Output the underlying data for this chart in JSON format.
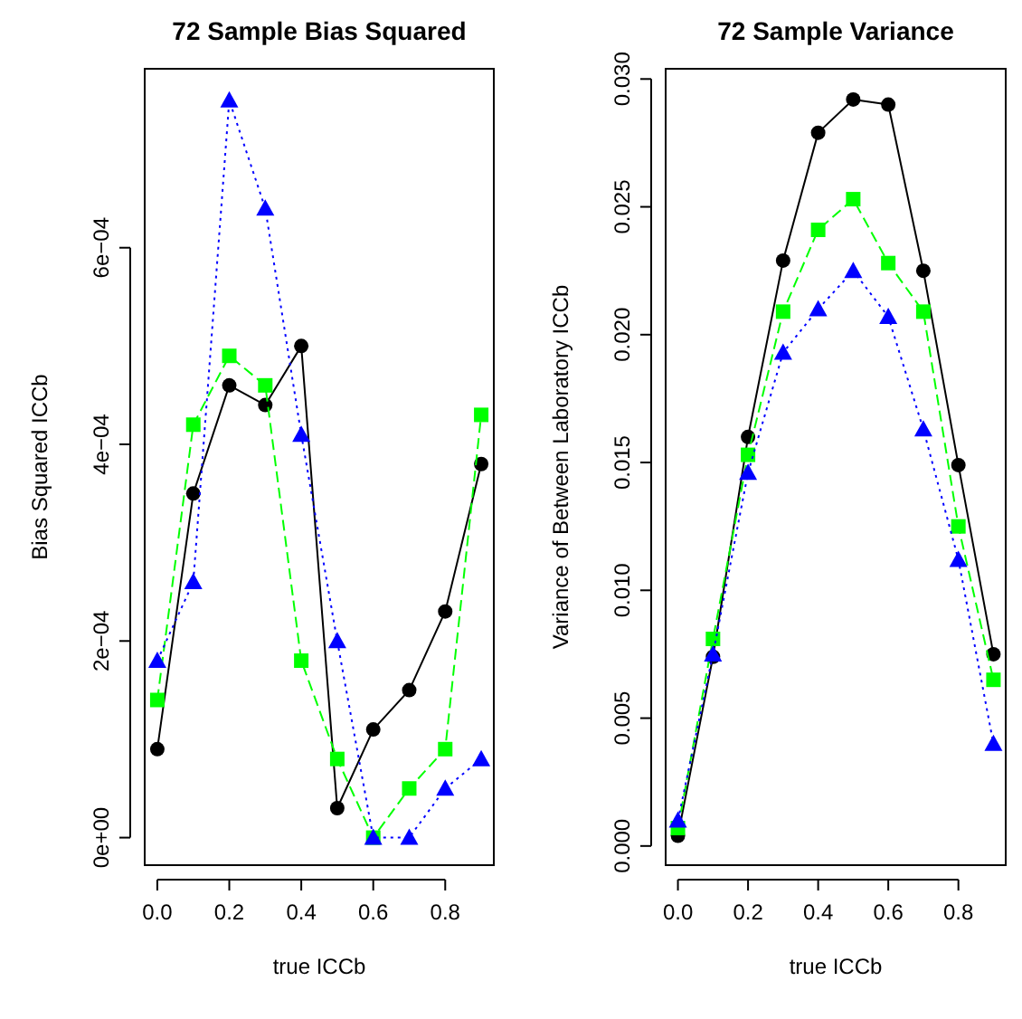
{
  "chart_data": [
    {
      "type": "line",
      "title": "72 Sample Bias Squared",
      "xlabel": "true ICCb",
      "ylabel": "Bias Squared ICCb",
      "x": [
        0.0,
        0.1,
        0.2,
        0.3,
        0.4,
        0.5,
        0.6,
        0.7,
        0.8,
        0.9
      ],
      "xlim": [
        -0.035,
        0.935
      ],
      "xticks": [
        {
          "value": 0,
          "label": "0.0"
        },
        0.2,
        0.4,
        0.6,
        0.8
      ],
      "ylim": [
        -2.8e-05,
        0.000782
      ],
      "yticks": [
        {
          "value": 0,
          "label": "0e+00"
        },
        {
          "value": 0.0002,
          "label": "2e−04"
        },
        {
          "value": 0.0004,
          "label": "4e−04"
        },
        {
          "value": 0.0006,
          "label": "6e−04"
        }
      ],
      "grid": false,
      "series": [
        {
          "color": "#000000",
          "marker": "circle",
          "line_style": "solid",
          "values": [
            9e-05,
            0.00035,
            0.00046,
            0.00044,
            0.0005,
            3e-05,
            0.00011,
            0.00015,
            0.00023,
            0.00038
          ]
        },
        {
          "color": "#00ff00",
          "marker": "square",
          "line_style": "dashed",
          "values": [
            0.00014,
            0.00042,
            0.00049,
            0.00046,
            0.00018,
            8e-05,
            0,
            5e-05,
            9e-05,
            0.00043
          ]
        },
        {
          "color": "#0000ff",
          "marker": "triangle",
          "line_style": "dotted",
          "values": [
            0.00018,
            0.00026,
            0.00075,
            0.00064,
            0.00041,
            0.0002,
            0,
            0,
            5e-05,
            8e-05
          ]
        }
      ]
    },
    {
      "type": "line",
      "title": "72 Sample Variance",
      "xlabel": "true ICCb",
      "ylabel": "Variance of Between Laboratory ICCb",
      "x": [
        0.0,
        0.1,
        0.2,
        0.3,
        0.4,
        0.5,
        0.6,
        0.7,
        0.8,
        0.9
      ],
      "xlim": [
        -0.035,
        0.935
      ],
      "xticks": [
        {
          "value": 0,
          "label": "0.0"
        },
        0.2,
        0.4,
        0.6,
        0.8
      ],
      "ylim": [
        -0.00075,
        0.0304
      ],
      "yticks": [
        {
          "value": 0,
          "label": "0.000"
        },
        0.005,
        {
          "value": 0.01,
          "label": "0.010"
        },
        0.015,
        {
          "value": 0.02,
          "label": "0.020"
        },
        0.025,
        {
          "value": 0.03,
          "label": "0.030"
        }
      ],
      "grid": false,
      "series": [
        {
          "color": "#000000",
          "marker": "circle",
          "line_style": "solid",
          "values": [
            0.0004,
            0.0074,
            0.016,
            0.0229,
            0.0279,
            0.0292,
            0.029,
            0.0225,
            0.0149,
            0.0075
          ]
        },
        {
          "color": "#00ff00",
          "marker": "square",
          "line_style": "dashed",
          "values": [
            0.0007,
            0.0081,
            0.0153,
            0.0209,
            0.0241,
            0.0253,
            0.0228,
            0.0209,
            0.0125,
            0.0065
          ]
        },
        {
          "color": "#0000ff",
          "marker": "triangle",
          "line_style": "dotted",
          "values": [
            0.001,
            0.0075,
            0.0146,
            0.0193,
            0.021,
            0.0225,
            0.0207,
            0.0163,
            0.0112,
            0.004
          ]
        }
      ]
    }
  ]
}
